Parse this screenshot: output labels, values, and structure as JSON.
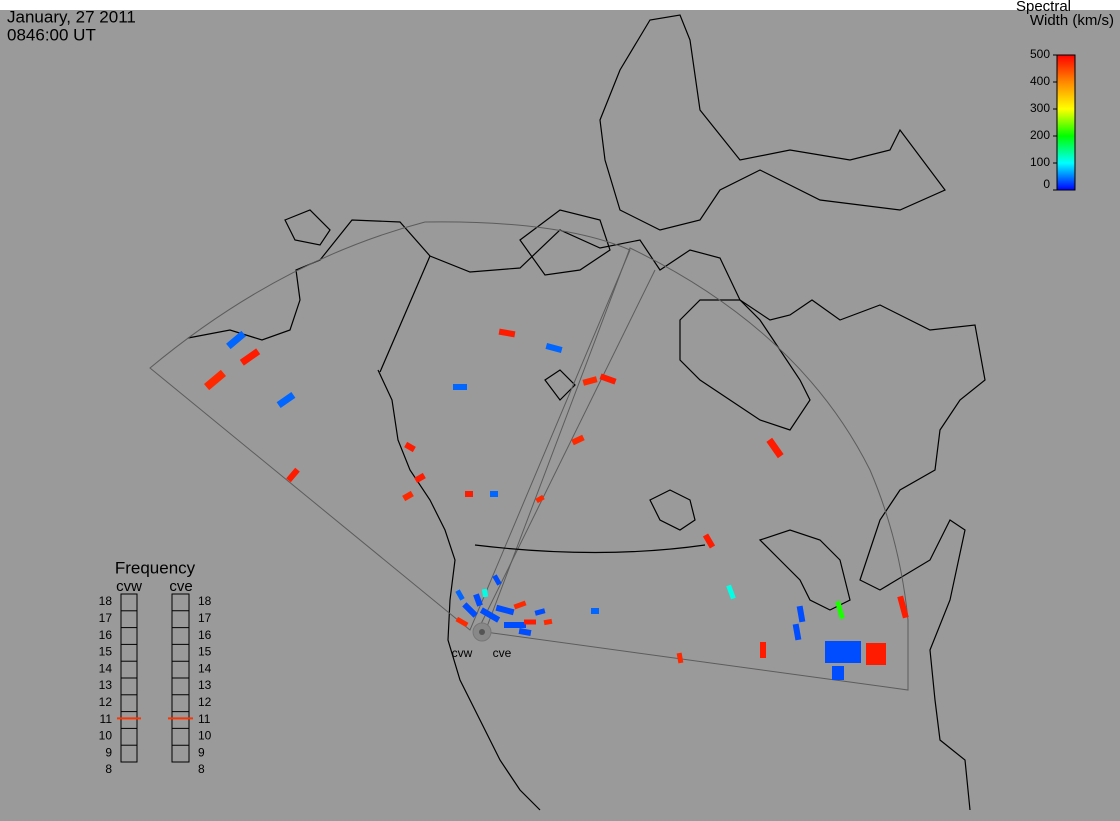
{
  "header": {
    "date": "January, 27 2011",
    "time": "0846:00 UT"
  },
  "colorbar": {
    "title_line1": "Spectral",
    "title_line2": "Width (km/s)",
    "lim": [
      0,
      500
    ],
    "ticks": [
      0,
      100,
      200,
      300,
      400,
      500
    ]
  },
  "radars": {
    "labels": [
      "cvw",
      "cve"
    ]
  },
  "frequency": {
    "title": "Frequency",
    "radars": [
      "cvw",
      "cve"
    ],
    "lim": [
      8,
      18
    ],
    "ticks": [
      8,
      9,
      10,
      11,
      12,
      13,
      14,
      15,
      16,
      17,
      18
    ],
    "values": [
      10.6,
      10.6
    ]
  },
  "echoes": {
    "spectral_width": [
      40,
      480,
      470,
      40,
      480,
      480,
      40,
      40,
      470,
      480,
      470,
      470,
      480,
      40,
      480,
      480,
      470,
      480,
      480,
      110,
      30,
      30,
      210,
      480,
      470,
      480,
      30,
      480,
      30,
      40,
      30,
      30,
      30,
      470,
      30,
      40,
      30,
      480,
      30,
      30,
      470,
      110,
      30,
      470
    ]
  }
}
